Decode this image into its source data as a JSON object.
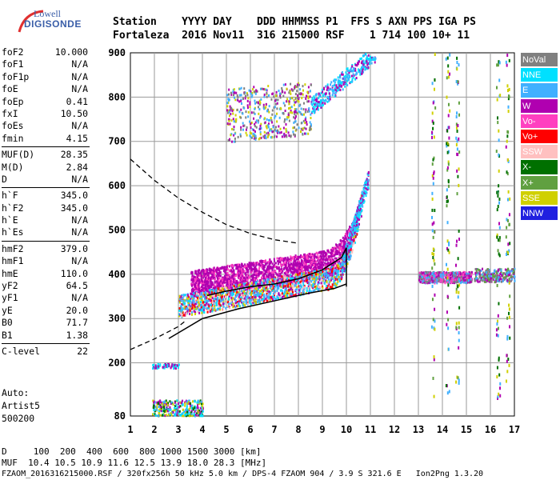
{
  "logo": {
    "line1": "Lowell",
    "line2": "DIGISONDE"
  },
  "header": {
    "row1": "Station    YYYY DAY    DDD HHMMSS P1  FFS S AXN PPS IGA PS",
    "row2": "Fortaleza  2016 Nov11  316 215000 RSF    1 714 100 10+ 11"
  },
  "params": {
    "group1": [
      {
        "k": "foF2",
        "v": "10.000"
      },
      {
        "k": "foF1",
        "v": "N/A"
      },
      {
        "k": "foF1p",
        "v": "N/A"
      },
      {
        "k": "foE",
        "v": "N/A"
      },
      {
        "k": "foEp",
        "v": "0.41"
      },
      {
        "k": "fxI",
        "v": "10.50"
      },
      {
        "k": "foEs",
        "v": "N/A"
      },
      {
        "k": "fmin",
        "v": "4.15"
      }
    ],
    "group2": [
      {
        "k": "MUF(D)",
        "v": "28.35"
      },
      {
        "k": "M(D)",
        "v": "2.84"
      },
      {
        "k": "D",
        "v": "N/A"
      }
    ],
    "group3": [
      {
        "k": "h`F",
        "v": "345.0"
      },
      {
        "k": "h`F2",
        "v": "345.0"
      },
      {
        "k": "h`E",
        "v": "N/A"
      },
      {
        "k": "h`Es",
        "v": "N/A"
      }
    ],
    "group4": [
      {
        "k": "hmF2",
        "v": "379.0"
      },
      {
        "k": "hmF1",
        "v": "N/A"
      },
      {
        "k": "hmE",
        "v": "110.0"
      },
      {
        "k": "yF2",
        "v": "64.5"
      },
      {
        "k": "yF1",
        "v": "N/A"
      },
      {
        "k": "yE",
        "v": "20.0"
      },
      {
        "k": "B0",
        "v": "71.7"
      },
      {
        "k": "B1",
        "v": "1.38"
      }
    ],
    "group5": [
      {
        "k": "C-level",
        "v": "22"
      }
    ]
  },
  "auto": {
    "line1": "Auto:",
    "line2": "Artist5",
    "line3": "500200"
  },
  "legend": [
    {
      "label": "NoVal",
      "color": "#808080"
    },
    {
      "label": "NNE",
      "color": "#00e0ff"
    },
    {
      "label": "E",
      "color": "#40b0ff"
    },
    {
      "label": "W",
      "color": "#b000b0"
    },
    {
      "label": "Vo-",
      "color": "#ff40c0"
    },
    {
      "label": "Vo+",
      "color": "#ff0000"
    },
    {
      "label": "SSW",
      "color": "#ffc0c0"
    },
    {
      "label": "X-",
      "color": "#007000"
    },
    {
      "label": "X+",
      "color": "#60a040"
    },
    {
      "label": "SSE",
      "color": "#d0d000"
    },
    {
      "label": "NNW",
      "color": "#2020e0"
    }
  ],
  "footer": {
    "d_line": "D     100  200  400  600  800 1000 1500 3000 [km]",
    "muf_line": "MUF  10.4 10.5 10.9 11.6 12.5 13.9 18.0 28.3 [MHz]",
    "file_line": "FZAOM_2016316215000.RSF / 320fx256h 50 kHz 5.0 km / DPS-4 FZAOM 904 / 3.9 S 321.6 E   Ion2Png 1.3.20"
  },
  "chart_data": {
    "type": "scatter",
    "xlim": [
      1,
      17
    ],
    "ylim": [
      80,
      900
    ],
    "x_ticks": [
      "1",
      "2",
      "3",
      "4",
      "5",
      "6",
      "7",
      "8",
      "9",
      "10",
      "11",
      "12",
      "13",
      "14",
      "15",
      "16",
      "17"
    ],
    "y_ticks": [
      "80",
      "200",
      "300",
      "400",
      "500",
      "600",
      "700",
      "800",
      "900"
    ],
    "y_tick_values": [
      80,
      200,
      300,
      400,
      500,
      600,
      700,
      800,
      900
    ],
    "grid": true,
    "profile_curve": {
      "x": [
        2.6,
        4.0,
        5.5,
        7.0,
        8.5,
        9.5,
        10.0
      ],
      "y": [
        255,
        300,
        322,
        340,
        358,
        368,
        378
      ]
    },
    "trace_curve": {
      "x": [
        4.2,
        5.0,
        6.0,
        7.0,
        8.0,
        9.0,
        9.8,
        10.0
      ],
      "y": [
        352,
        362,
        372,
        378,
        390,
        410,
        438,
        460
      ]
    },
    "dashed_upper": {
      "x": [
        1.0,
        2.0,
        3.0,
        4.0,
        5.0,
        6.0,
        7.0,
        8.0
      ],
      "y": [
        660,
        612,
        572,
        540,
        512,
        492,
        478,
        470
      ]
    },
    "dashed_lower": {
      "x": [
        1.0,
        1.5,
        2.0,
        2.5,
        3.0,
        3.3
      ],
      "y": [
        230,
        242,
        254,
        268,
        282,
        295
      ]
    }
  }
}
